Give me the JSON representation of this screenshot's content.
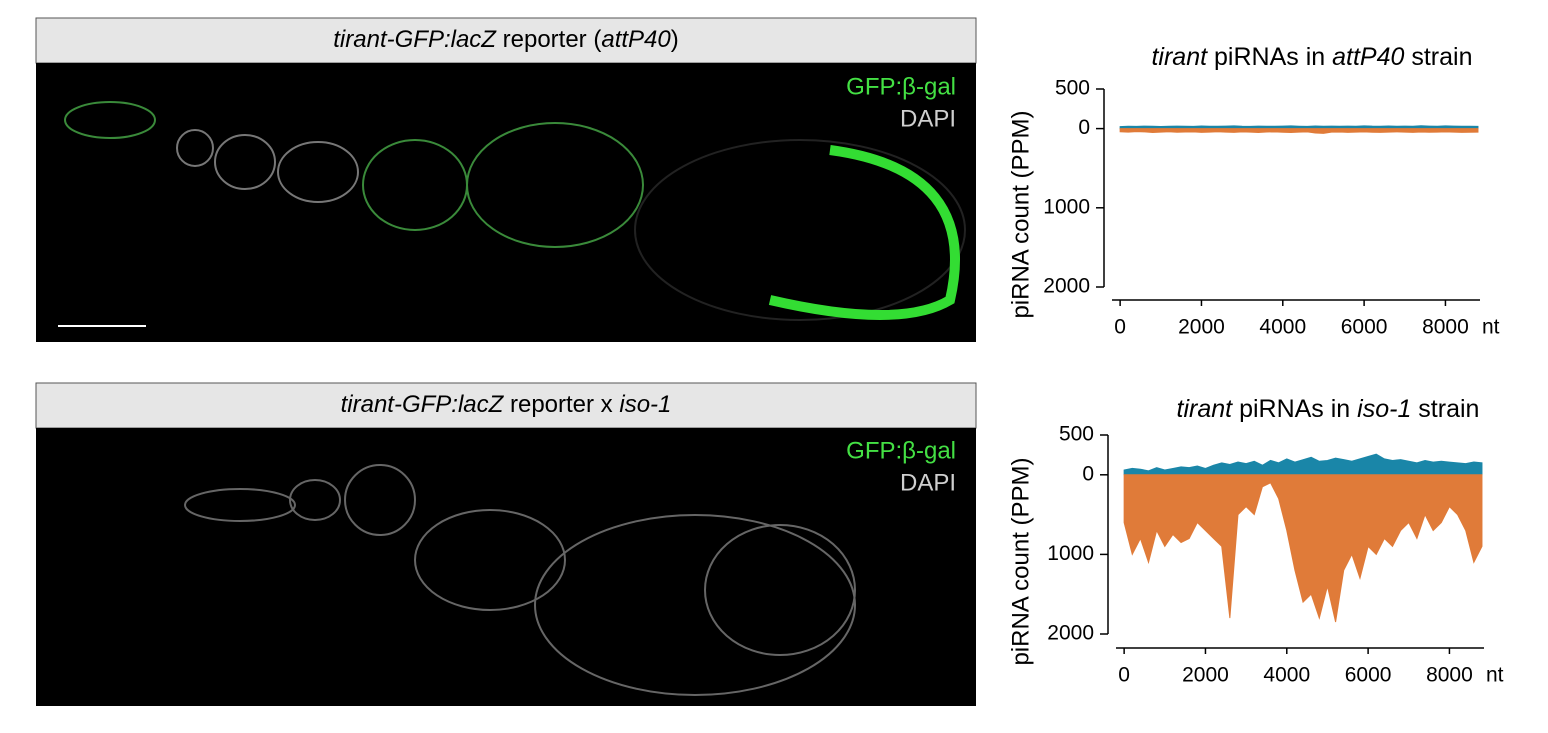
{
  "images": [
    {
      "title_parts": [
        "tirant-GFP:lacZ",
        " reporter (",
        "attP40",
        ")"
      ],
      "legend": [
        "GFP:β-gal",
        "DAPI"
      ]
    },
    {
      "title_parts": [
        "tirant-GFP:lacZ",
        " reporter x ",
        "iso-1"
      ],
      "legend": [
        "GFP:β-gal",
        "DAPI"
      ]
    }
  ],
  "chart_data": [
    {
      "type": "area",
      "title_parts": [
        "tirant",
        " piRNAs in ",
        "attP40",
        " strain"
      ],
      "ylabel": "piRNA count (PPM)",
      "xlabel": "nt",
      "x": [
        0,
        200,
        400,
        600,
        800,
        1000,
        1200,
        1400,
        1600,
        1800,
        2000,
        2200,
        2400,
        2600,
        2800,
        3000,
        3200,
        3400,
        3600,
        3800,
        4000,
        4200,
        4400,
        4600,
        4800,
        5000,
        5200,
        5400,
        5600,
        5800,
        6000,
        6200,
        6400,
        6600,
        6800,
        7000,
        7200,
        7400,
        7600,
        7800,
        8000,
        8200,
        8400,
        8600,
        8800
      ],
      "series": [
        {
          "color": "#1a86a8",
          "values": [
            25,
            30,
            28,
            32,
            30,
            27,
            29,
            31,
            30,
            28,
            33,
            30,
            29,
            31,
            35,
            30,
            28,
            32,
            30,
            29,
            31,
            34,
            30,
            28,
            33,
            30,
            31,
            29,
            32,
            30,
            35,
            31,
            30,
            33,
            29,
            31,
            30,
            36,
            32,
            30,
            34,
            31,
            29,
            30,
            28
          ]
        },
        {
          "color": "#e07b39",
          "values": [
            -40,
            -45,
            -38,
            -42,
            -50,
            -44,
            -40,
            -46,
            -43,
            -41,
            -48,
            -45,
            -40,
            -44,
            -47,
            -42,
            -45,
            -50,
            -43,
            -41,
            -46,
            -49,
            -44,
            -42,
            -55,
            -60,
            -45,
            -43,
            -47,
            -44,
            -42,
            -46,
            -48,
            -44,
            -41,
            -45,
            -47,
            -43,
            -46,
            -44,
            -42,
            -45,
            -48,
            -46,
            -44
          ]
        }
      ],
      "xlim": [
        -200,
        8850
      ],
      "xticks": [
        0,
        2000,
        4000,
        6000,
        8000
      ],
      "ylim": [
        500,
        -2000
      ],
      "yticks": [
        500,
        0,
        {
          "value": -1000,
          "label": "1000"
        },
        {
          "value": -2000,
          "label": "2000"
        }
      ]
    },
    {
      "type": "area",
      "title_parts": [
        "tirant",
        " piRNAs in ",
        "iso-1",
        " strain"
      ],
      "ylabel": "piRNA count (PPM)",
      "xlabel": "nt",
      "x": [
        0,
        200,
        400,
        600,
        800,
        1000,
        1200,
        1400,
        1600,
        1800,
        2000,
        2200,
        2400,
        2600,
        2800,
        3000,
        3200,
        3400,
        3600,
        3800,
        4000,
        4200,
        4400,
        4600,
        4800,
        5000,
        5200,
        5400,
        5600,
        5800,
        6000,
        6200,
        6400,
        6600,
        6800,
        7000,
        7200,
        7400,
        7600,
        7800,
        8000,
        8200,
        8400,
        8600,
        8800
      ],
      "series": [
        {
          "color": "#1a86a8",
          "values": [
            60,
            80,
            70,
            50,
            90,
            60,
            80,
            100,
            90,
            110,
            80,
            120,
            150,
            130,
            160,
            140,
            170,
            120,
            180,
            150,
            200,
            160,
            190,
            220,
            170,
            180,
            210,
            190,
            170,
            200,
            230,
            260,
            200,
            180,
            190,
            170,
            150,
            180,
            160,
            170,
            160,
            150,
            140,
            160,
            150
          ]
        },
        {
          "color": "#e07b39",
          "values": [
            -600,
            -1000,
            -800,
            -1100,
            -700,
            -900,
            -750,
            -850,
            -800,
            -600,
            -700,
            -800,
            -900,
            -1800,
            -500,
            -400,
            -500,
            -150,
            -100,
            -300,
            -700,
            -1200,
            -1600,
            -1500,
            -1800,
            -1400,
            -1850,
            -1200,
            -1000,
            -1300,
            -900,
            -1000,
            -800,
            -900,
            -700,
            -600,
            -800,
            -500,
            -700,
            -600,
            -400,
            -500,
            -700,
            -1100,
            -900
          ]
        }
      ],
      "xlim": [
        -200,
        8850
      ],
      "xticks": [
        0,
        2000,
        4000,
        6000,
        8000
      ],
      "ylim": [
        500,
        -2000
      ],
      "yticks": [
        500,
        0,
        {
          "value": -1000,
          "label": "1000"
        },
        {
          "value": -2000,
          "label": "2000"
        }
      ]
    }
  ]
}
